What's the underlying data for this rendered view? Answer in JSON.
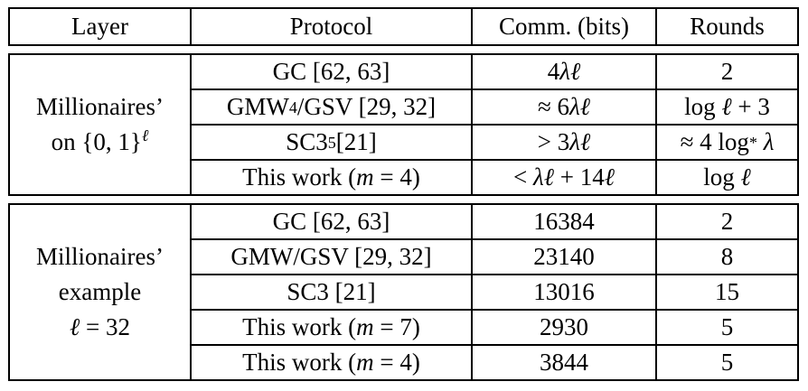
{
  "header": {
    "layer": "Layer",
    "protocol": "Protocol",
    "comm": "Comm. (bits)",
    "rounds": "Rounds"
  },
  "section1": {
    "layer_line1": "Millionaires’",
    "layer_line2_prefix": "on {0, 1}",
    "layer_line2_sup": "ℓ",
    "rows": [
      {
        "protocol": "GC [62, 63]",
        "comm_num": "4",
        "comm_var": "λℓ",
        "rounds": "2"
      },
      {
        "protocol_main": "GMW",
        "protocol_sup": "4",
        "protocol_rest": "/GSV [29, 32]",
        "comm_prefix": "≈ 6",
        "comm_var": "λℓ",
        "rounds_prefix": "log ",
        "rounds_var": "ℓ",
        "rounds_suffix": " + 3"
      },
      {
        "protocol_main": "SC3",
        "protocol_sup": "5",
        "protocol_rest": "[21]",
        "comm_prefix": "> 3",
        "comm_var": "λℓ",
        "rounds_prefix": "≈ 4 log",
        "rounds_sup": "*",
        "rounds_var": " λ"
      },
      {
        "protocol_prefix": "This work (",
        "protocol_var": "m",
        "protocol_suffix": " = 4)",
        "comm_prefix": "< ",
        "comm_var1": "λℓ",
        "comm_mid": " + 14",
        "comm_var2": "ℓ",
        "rounds_prefix": "log ",
        "rounds_var": "ℓ"
      }
    ]
  },
  "section2": {
    "layer_line1": "Millionaires’",
    "layer_line2": "example",
    "layer_line3_var": "ℓ",
    "layer_line3_rest": " = 32",
    "rows": [
      {
        "protocol": "GC [62, 63]",
        "comm": "16384",
        "rounds": "2"
      },
      {
        "protocol": "GMW/GSV [29, 32]",
        "comm": "23140",
        "rounds": "8"
      },
      {
        "protocol": "SC3 [21]",
        "comm": "13016",
        "rounds": "15"
      },
      {
        "protocol_prefix": "This work (",
        "protocol_var": "m",
        "protocol_suffix": " = 7)",
        "comm": "2930",
        "rounds": "5"
      },
      {
        "protocol_prefix": "This work (",
        "protocol_var": "m",
        "protocol_suffix": " = 4)",
        "comm": "3844",
        "rounds": "5"
      }
    ]
  }
}
